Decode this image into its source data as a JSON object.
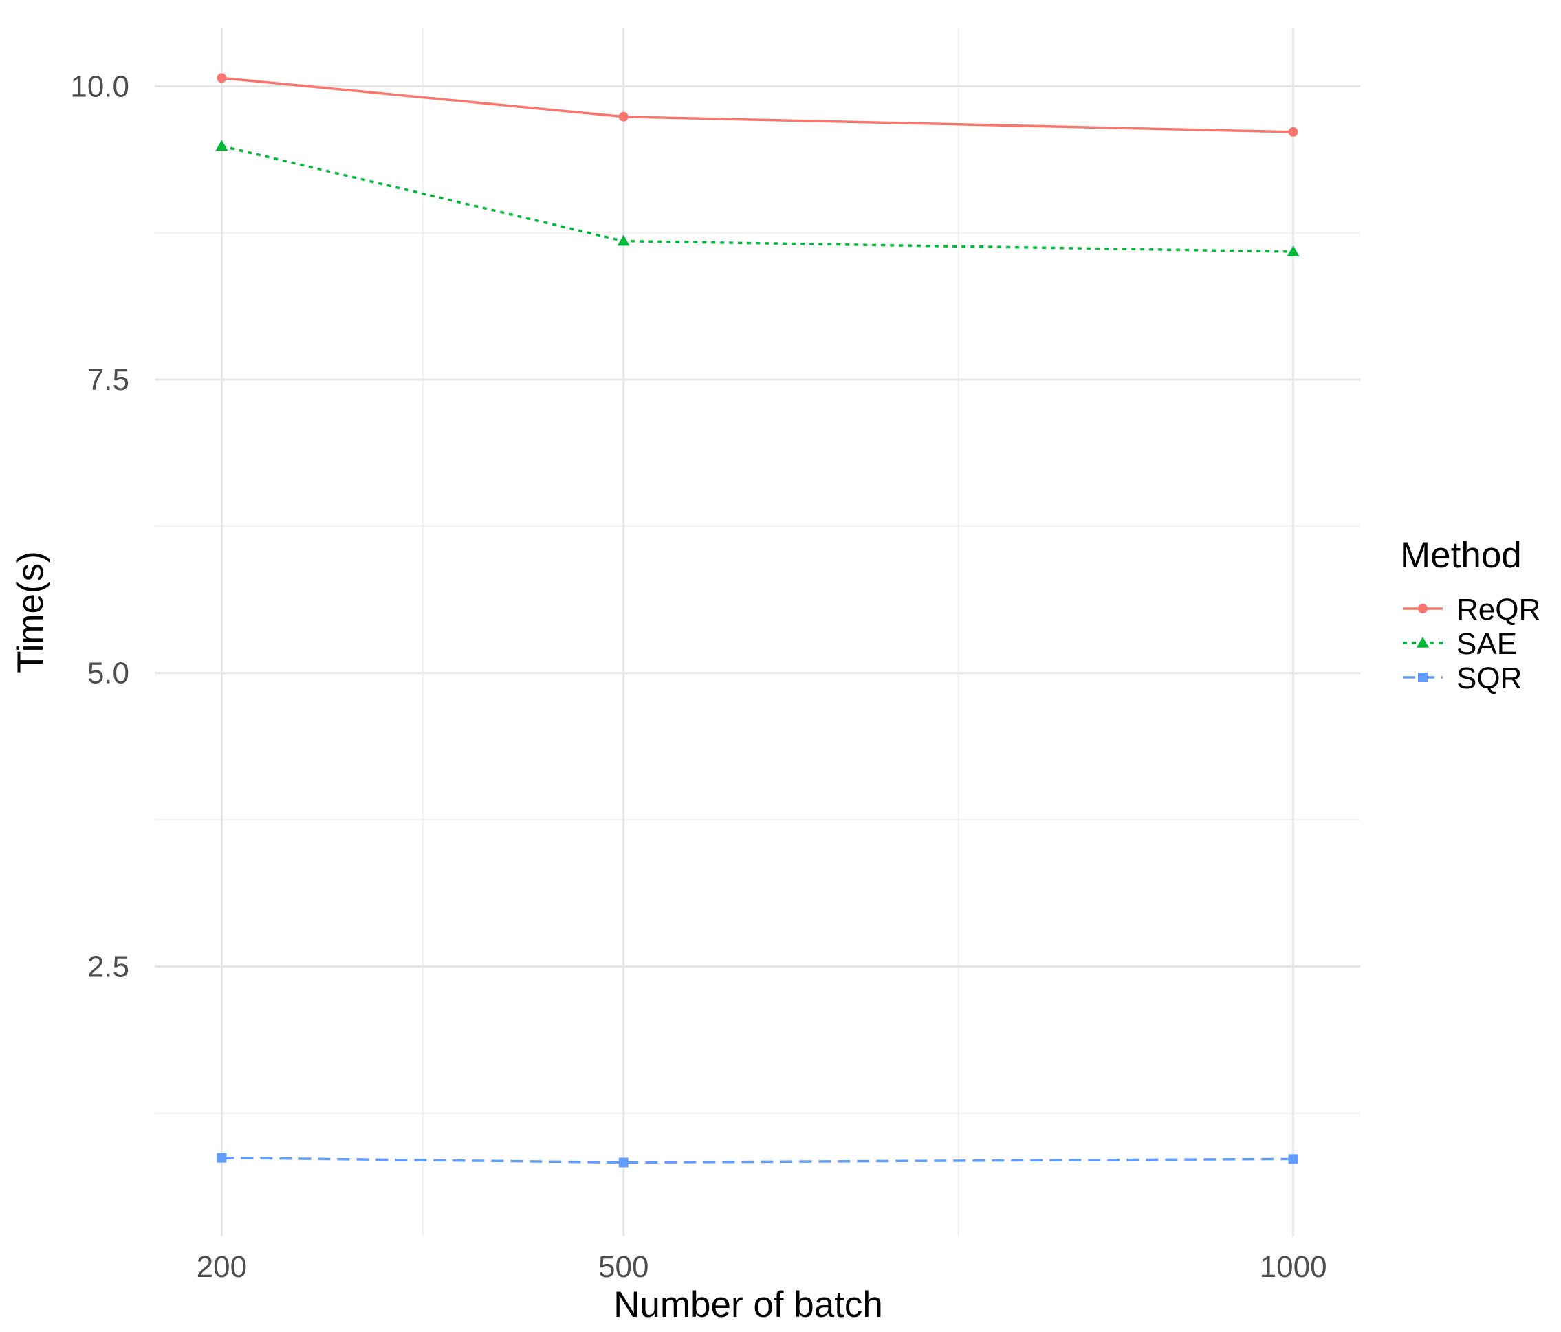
{
  "chart_data": {
    "type": "line",
    "title": "",
    "xlabel": "Number of batch",
    "ylabel": "Time(s)",
    "x_categories": [
      "200",
      "500",
      "1000"
    ],
    "x": [
      200,
      500,
      1000
    ],
    "xlim": [
      150,
      1050
    ],
    "ylim": [
      0.2,
      10.5
    ],
    "y_ticks": [
      2.5,
      5.0,
      7.5,
      10.0
    ],
    "y_tick_labels": [
      "2.5",
      "5.0",
      "7.5",
      "10.0"
    ],
    "y_minor_gridlines": [
      1.25,
      3.75,
      6.25,
      8.75
    ],
    "x_minor_gridlines": [
      350,
      750
    ],
    "grid": true,
    "legend": {
      "title": "Method",
      "position": "right"
    },
    "series": [
      {
        "name": "ReQR",
        "values": [
          10.07,
          9.74,
          9.61
        ],
        "color": "#F8766D",
        "line": "solid",
        "marker": "circle"
      },
      {
        "name": "SAE",
        "values": [
          9.49,
          8.68,
          8.59
        ],
        "color": "#00BA38",
        "line": "dotted",
        "marker": "triangle"
      },
      {
        "name": "SQR",
        "values": [
          0.87,
          0.83,
          0.86
        ],
        "color": "#619CFF",
        "line": "dashed",
        "marker": "square"
      }
    ]
  }
}
